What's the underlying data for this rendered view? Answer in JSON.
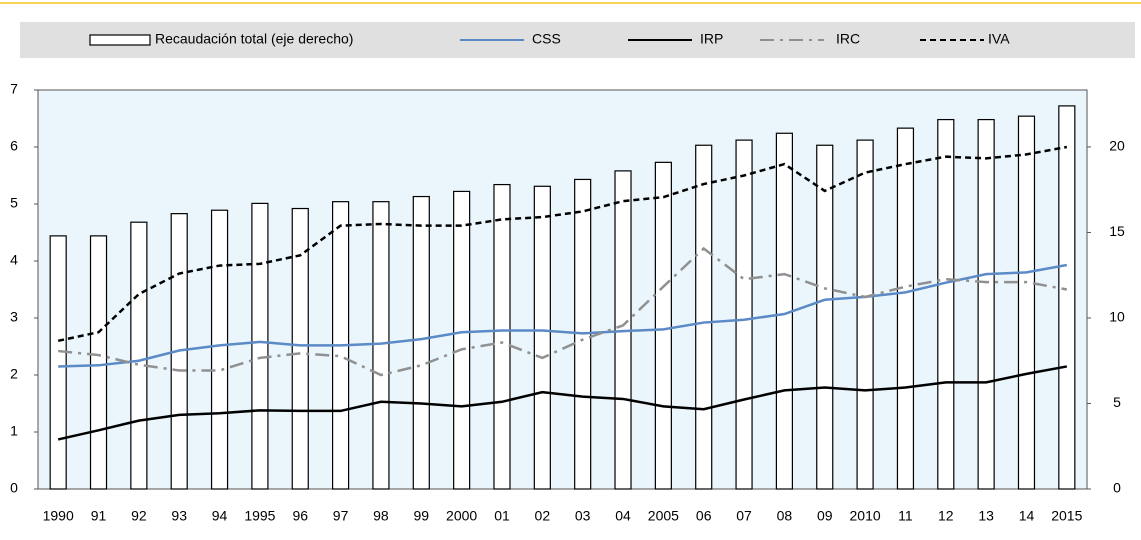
{
  "chart_data": {
    "type": "combo",
    "categories": [
      "1990",
      "91",
      "92",
      "93",
      "94",
      "1995",
      "96",
      "97",
      "98",
      "99",
      "2000",
      "01",
      "02",
      "03",
      "04",
      "2005",
      "06",
      "07",
      "08",
      "09",
      "2010",
      "11",
      "12",
      "13",
      "14",
      "2015"
    ],
    "ylim": [
      0,
      7
    ],
    "yticks": [
      0,
      1,
      2,
      3,
      4,
      5,
      6,
      7
    ],
    "y2lim": [
      0,
      23.33
    ],
    "y2ticks": [
      0,
      5,
      10,
      15,
      20
    ],
    "series": [
      {
        "name": "Recaudación total (eje derecho)",
        "type": "bar",
        "axis": "y2",
        "color": "#ffffff",
        "values": [
          14.8,
          14.8,
          15.6,
          16.1,
          16.3,
          16.7,
          16.4,
          16.8,
          16.8,
          17.1,
          17.4,
          17.8,
          17.7,
          18.1,
          18.6,
          19.1,
          20.1,
          20.4,
          20.8,
          20.1,
          20.4,
          21.1,
          21.6,
          21.6,
          21.8,
          22.4
        ]
      },
      {
        "name": "CSS",
        "type": "line",
        "color": "#5b8ac6",
        "dash": "solid",
        "values": [
          2.15,
          2.17,
          2.25,
          2.43,
          2.52,
          2.58,
          2.52,
          2.52,
          2.55,
          2.63,
          2.75,
          2.78,
          2.78,
          2.73,
          2.77,
          2.8,
          2.92,
          2.97,
          3.07,
          3.32,
          3.37,
          3.45,
          3.62,
          3.77,
          3.8,
          3.93
        ]
      },
      {
        "name": "IRP",
        "type": "line",
        "color": "#000000",
        "dash": "solid",
        "values": [
          0.87,
          1.03,
          1.2,
          1.3,
          1.33,
          1.38,
          1.37,
          1.37,
          1.53,
          1.5,
          1.45,
          1.53,
          1.7,
          1.62,
          1.58,
          1.45,
          1.4,
          1.57,
          1.73,
          1.78,
          1.73,
          1.78,
          1.87,
          1.87,
          2.02,
          2.15
        ]
      },
      {
        "name": "IRC",
        "type": "line",
        "color": "#909090",
        "dash": "dashdot",
        "values": [
          2.42,
          2.35,
          2.18,
          2.08,
          2.08,
          2.3,
          2.38,
          2.33,
          2.0,
          2.17,
          2.45,
          2.57,
          2.3,
          2.62,
          2.87,
          3.55,
          4.22,
          3.68,
          3.77,
          3.52,
          3.37,
          3.55,
          3.68,
          3.63,
          3.63,
          3.5
        ]
      },
      {
        "name": "IVA",
        "type": "line",
        "color": "#000000",
        "dash": "dashed",
        "values": [
          2.6,
          2.75,
          3.42,
          3.78,
          3.92,
          3.95,
          4.1,
          4.62,
          4.65,
          4.62,
          4.62,
          4.73,
          4.77,
          4.87,
          5.05,
          5.12,
          5.35,
          5.5,
          5.7,
          5.23,
          5.55,
          5.7,
          5.83,
          5.8,
          5.87,
          6.0
        ]
      }
    ]
  }
}
